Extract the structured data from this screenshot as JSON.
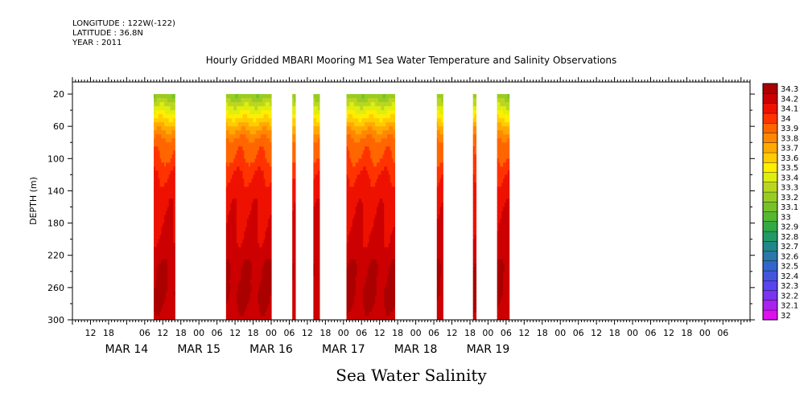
{
  "header": {
    "longitude": "LONGITUDE : 122W(-122)",
    "latitude": "LATITUDE : 36.8N",
    "year": "YEAR : 2011"
  },
  "footer_label": "Sea Water Salinity",
  "chart_data": {
    "type": "heatmap",
    "title": "Hourly Gridded MBARI Mooring M1 Sea Water Temperature and Salinity Observations",
    "xlabel": "",
    "ylabel": "DEPTH (m)",
    "x_unit": "hours since MAR 14 00:00",
    "xlim": [
      6,
      231
    ],
    "ylim": [
      300,
      5
    ],
    "y_ticks": [
      20,
      60,
      100,
      140,
      180,
      220,
      260,
      300
    ],
    "x_ticks": [
      {
        "h": 12,
        "label": "12"
      },
      {
        "h": 18,
        "label": "18"
      },
      {
        "h": 30,
        "label": "06"
      },
      {
        "h": 36,
        "label": "12"
      },
      {
        "h": 42,
        "label": "18"
      },
      {
        "h": 48,
        "label": "00"
      },
      {
        "h": 54,
        "label": "06"
      },
      {
        "h": 60,
        "label": "12"
      },
      {
        "h": 66,
        "label": "18"
      },
      {
        "h": 72,
        "label": "00"
      },
      {
        "h": 78,
        "label": "06"
      },
      {
        "h": 84,
        "label": "12"
      },
      {
        "h": 90,
        "label": "18"
      },
      {
        "h": 96,
        "label": "00"
      },
      {
        "h": 102,
        "label": "06"
      },
      {
        "h": 108,
        "label": "12"
      },
      {
        "h": 114,
        "label": "18"
      },
      {
        "h": 120,
        "label": "00"
      },
      {
        "h": 126,
        "label": "06"
      },
      {
        "h": 132,
        "label": "12"
      },
      {
        "h": 138,
        "label": "18"
      },
      {
        "h": 144,
        "label": "00"
      },
      {
        "h": 150,
        "label": "06"
      },
      {
        "h": 156,
        "label": "12"
      },
      {
        "h": 162,
        "label": "18"
      },
      {
        "h": 168,
        "label": "00"
      },
      {
        "h": 174,
        "label": "06"
      },
      {
        "h": 180,
        "label": "12"
      },
      {
        "h": 186,
        "label": "18"
      },
      {
        "h": 192,
        "label": "00"
      },
      {
        "h": 198,
        "label": "06"
      },
      {
        "h": 204,
        "label": "12"
      },
      {
        "h": 210,
        "label": "18"
      },
      {
        "h": 216,
        "label": "00"
      },
      {
        "h": 222,
        "label": "06"
      }
    ],
    "day_labels": [
      {
        "h": 12,
        "label": "MAR 14"
      },
      {
        "h": 36,
        "label": "MAR 15"
      },
      {
        "h": 60,
        "label": "MAR 16"
      },
      {
        "h": 84,
        "label": "MAR 17"
      },
      {
        "h": 108,
        "label": "MAR 18"
      },
      {
        "h": 132,
        "label": "MAR 19"
      }
    ],
    "note_day_labels": "day label hours offset by 12 relative to tick hours for MAR 14 start at 24",
    "levels": [
      32,
      32.1,
      32.2,
      32.3,
      32.4,
      32.5,
      32.6,
      32.7,
      32.8,
      32.9,
      33,
      33.1,
      33.2,
      33.3,
      33.4,
      33.5,
      33.6,
      33.7,
      33.8,
      33.9,
      34,
      34.1,
      34.2,
      34.3
    ],
    "level_labels": [
      "32",
      "32.1",
      "32.2",
      "32.3",
      "32.4",
      "32.5",
      "32.6",
      "32.7",
      "32.8",
      "32.9",
      "33",
      "33.1",
      "33.2",
      "33.3",
      "33.4",
      "33.5",
      "33.6",
      "33.7",
      "33.8",
      "33.9",
      "34",
      "34.1",
      "34.2",
      "34.3"
    ],
    "level_colors": [
      "#dd11ee",
      "#aa22ee",
      "#7a33ee",
      "#5a44ee",
      "#4455dd",
      "#3366cc",
      "#2a77aa",
      "#208888",
      "#229966",
      "#33aa44",
      "#55b833",
      "#77c22a",
      "#99cc22",
      "#bbd622",
      "#ddee11",
      "#ffee00",
      "#ffcc00",
      "#ffaa00",
      "#ff8800",
      "#ff6600",
      "#ff3300",
      "#ee1100",
      "#cc0000",
      "#aa0000"
    ],
    "profile": {
      "depths": [
        20,
        35,
        50,
        65,
        80,
        100,
        120,
        140,
        180,
        220,
        235,
        250,
        265,
        280,
        300
      ],
      "values": [
        33.2,
        33.4,
        33.6,
        33.8,
        33.95,
        34.0,
        34.1,
        34.15,
        34.2,
        34.25,
        34.3,
        34.3,
        34.32,
        34.3,
        34.25
      ]
    },
    "segments": [
      {
        "start": 33,
        "end": 40
      },
      {
        "start": 57,
        "end": 72
      },
      {
        "start": 79,
        "end": 80
      },
      {
        "start": 86,
        "end": 88
      },
      {
        "start": 97,
        "end": 113
      },
      {
        "start": 127,
        "end": 129
      },
      {
        "start": 139,
        "end": 140
      },
      {
        "start": 147,
        "end": 151
      }
    ]
  }
}
